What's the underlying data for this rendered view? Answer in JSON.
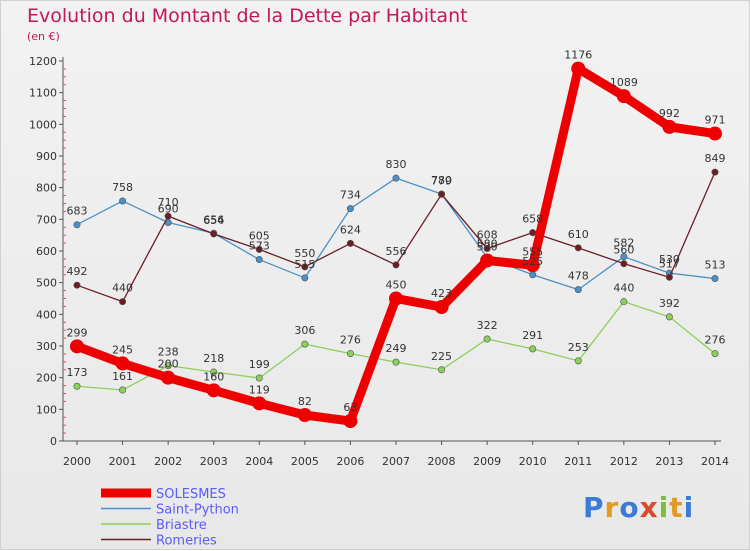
{
  "header": {
    "title": "Evolution du Montant de la Dette par Habitant",
    "unit": "(en €)"
  },
  "brand": {
    "logo_text": "Proxiti",
    "colors": [
      "#3b7bd8",
      "#e39a22",
      "#3b7bd8",
      "#d94a2c",
      "#7bbf3a",
      "#e39a22",
      "#3b7bd8"
    ]
  },
  "chart_data": {
    "type": "line",
    "x": [
      "2000",
      "2001",
      "2002",
      "2003",
      "2004",
      "2005",
      "2006",
      "2007",
      "2008",
      "2009",
      "2010",
      "2011",
      "2012",
      "2013",
      "2014"
    ],
    "ylim": [
      0,
      1200
    ],
    "yticks": [
      0,
      100,
      200,
      300,
      400,
      500,
      600,
      700,
      800,
      900,
      1000,
      1100,
      1200
    ],
    "grid": false,
    "legend_position": "bottom-left",
    "series": [
      {
        "name": "SOLESMES",
        "color": "#ee0000",
        "values": [
          299,
          245,
          200,
          160,
          119,
          82,
          63,
          450,
          423,
          570,
          555,
          1176,
          1089,
          992,
          971
        ]
      },
      {
        "name": "Saint-Python",
        "color": "#4a90c8",
        "values": [
          683,
          758,
          690,
          656,
          573,
          515,
          734,
          830,
          780,
          580,
          525,
          478,
          582,
          530,
          513
        ]
      },
      {
        "name": "Briastre",
        "color": "#8bd05a",
        "values": [
          173,
          161,
          238,
          218,
          199,
          306,
          276,
          249,
          225,
          322,
          291,
          253,
          440,
          392,
          276
        ]
      },
      {
        "name": "Romeries",
        "color": "#6b1e24",
        "values": [
          492,
          440,
          710,
          654,
          605,
          550,
          624,
          556,
          779,
          608,
          658,
          610,
          560,
          517,
          849
        ]
      }
    ],
    "labels": [
      [
        "299",
        "245",
        "200",
        "160",
        "119",
        "82",
        "63",
        "450",
        "423",
        "570",
        "555",
        "1176",
        "1089",
        "992",
        "971"
      ],
      [
        "683",
        "758",
        "690",
        "656",
        "573",
        "515",
        "734",
        "830",
        "780",
        "580",
        "525",
        "478",
        "582",
        "530",
        "513"
      ],
      [
        "173",
        "161",
        "238",
        "218",
        "199",
        "306",
        "276",
        "249",
        "225",
        "322",
        "291",
        "253",
        "440",
        "392",
        "276"
      ],
      [
        "492",
        "440",
        "710",
        "654",
        "605",
        "550",
        "624",
        "556",
        "779",
        "608",
        "658",
        "610",
        "560",
        "517",
        "849"
      ]
    ]
  }
}
